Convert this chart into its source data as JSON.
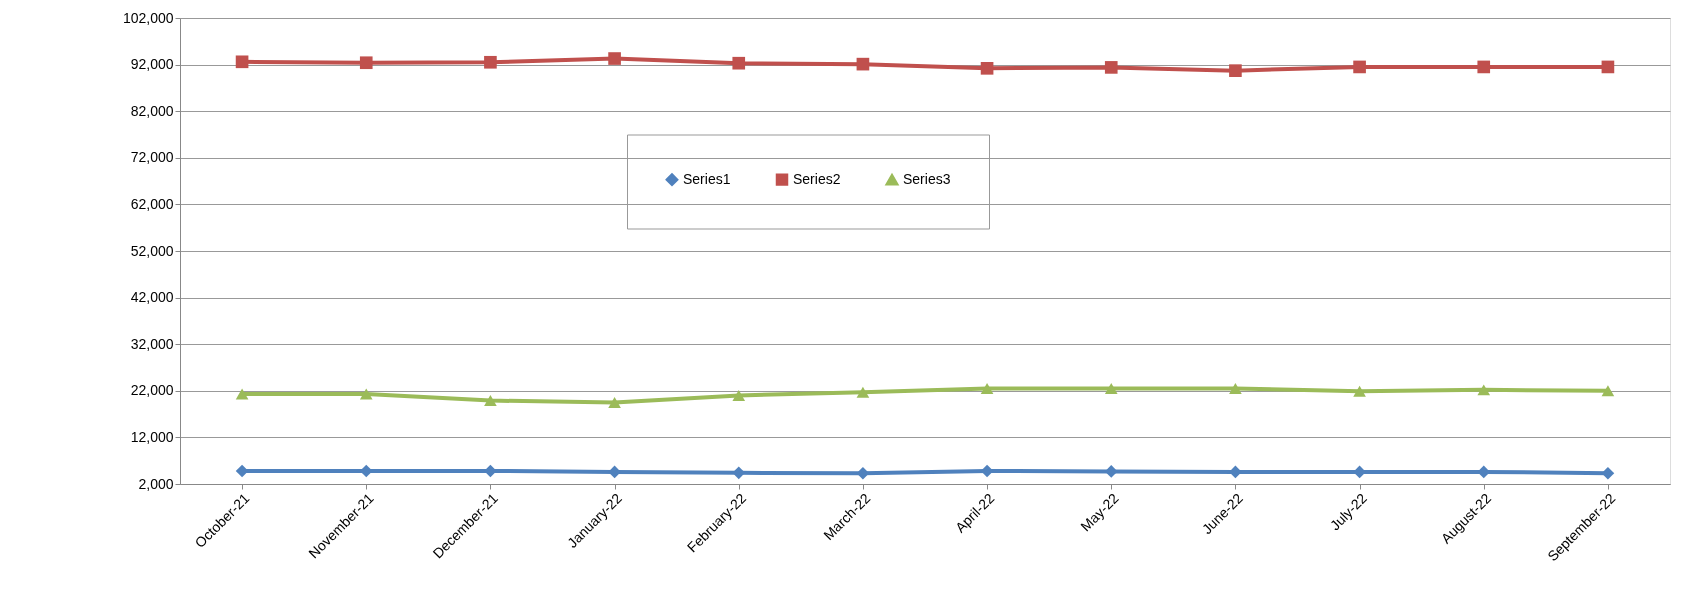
{
  "chart_data": {
    "type": "line",
    "categories": [
      "October-21",
      "November-21",
      "December-21",
      "January-22",
      "February-22",
      "March-22",
      "April-22",
      "May-22",
      "June-22",
      "July-22",
      "August-22",
      "September-22"
    ],
    "series": [
      {
        "name": "Series1",
        "color": "#4f81bd",
        "marker": "diamond",
        "values": [
          4800,
          4800,
          4800,
          4600,
          4400,
          4300,
          4800,
          4700,
          4600,
          4600,
          4600,
          4300
        ]
      },
      {
        "name": "Series2",
        "color": "#c0504d",
        "marker": "square",
        "values": [
          92600,
          92400,
          92500,
          93300,
          92300,
          92100,
          91200,
          91400,
          90700,
          91500,
          91500,
          91500
        ]
      },
      {
        "name": "Series3",
        "color": "#9bbb59",
        "marker": "triangle",
        "values": [
          21300,
          21300,
          19900,
          19500,
          21000,
          21700,
          22500,
          22500,
          22500,
          21900,
          22200,
          22000
        ]
      }
    ],
    "ylim": [
      2000,
      102000
    ],
    "yticks": [
      {
        "value": 2000,
        "label": "2,000"
      },
      {
        "value": 12000,
        "label": "12,000"
      },
      {
        "value": 22000,
        "label": "22,000"
      },
      {
        "value": 32000,
        "label": "32,000"
      },
      {
        "value": 42000,
        "label": "42,000"
      },
      {
        "value": 52000,
        "label": "52,000"
      },
      {
        "value": 62000,
        "label": "62,000"
      },
      {
        "value": 72000,
        "label": "72,000"
      },
      {
        "value": 82000,
        "label": "82,000"
      },
      {
        "value": 92000,
        "label": "92,000"
      },
      {
        "value": 102000,
        "label": "102,000"
      }
    ],
    "grid": "y",
    "legend": "top",
    "line_style": "solid"
  }
}
